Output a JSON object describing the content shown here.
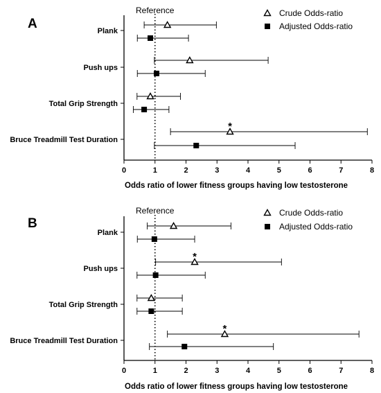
{
  "chart_data": [
    {
      "type": "forest",
      "panel_label": "A",
      "reference_label": "Reference",
      "reference_value": 1,
      "xlabel": "Odds ratio of lower fitness groups having low testosterone",
      "xlim": [
        0,
        8
      ],
      "xticks": [
        "0",
        "1",
        "2",
        "3",
        "4",
        "5",
        "6",
        "7",
        "8"
      ],
      "legend": {
        "position": "top-right",
        "entries": [
          "Crude Odds-ratio",
          "Adjusted Odds-ratio"
        ]
      },
      "categories": [
        "Plank",
        "Push ups",
        "Total Grip Strength",
        "Bruce Treadmill Test Duration"
      ],
      "series": [
        {
          "name": "Crude Odds-ratio",
          "marker": "open-triangle",
          "points": [
            {
              "or": 1.4,
              "lo": 0.65,
              "hi": 2.98,
              "sig": false
            },
            {
              "or": 2.12,
              "lo": 0.98,
              "hi": 4.65,
              "sig": false
            },
            {
              "or": 0.85,
              "lo": 0.42,
              "hi": 1.82,
              "sig": false
            },
            {
              "or": 3.42,
              "lo": 1.5,
              "hi": 7.85,
              "sig": true
            }
          ]
        },
        {
          "name": "Adjusted Odds-ratio",
          "marker": "filled-square",
          "points": [
            {
              "or": 0.85,
              "lo": 0.43,
              "hi": 2.08,
              "sig": false
            },
            {
              "or": 1.05,
              "lo": 0.43,
              "hi": 2.62,
              "sig": false
            },
            {
              "or": 0.65,
              "lo": 0.3,
              "hi": 1.45,
              "sig": false
            },
            {
              "or": 2.33,
              "lo": 0.98,
              "hi": 5.52,
              "sig": false
            }
          ]
        }
      ],
      "significance_marker": "*"
    },
    {
      "type": "forest",
      "panel_label": "B",
      "reference_label": "Reference",
      "reference_value": 1,
      "xlabel": "Odds ratio of lower fitness groups having low testosterone",
      "xlim": [
        0,
        8
      ],
      "xticks": [
        "0",
        "1",
        "2",
        "3",
        "4",
        "5",
        "6",
        "7",
        "8"
      ],
      "legend": {
        "position": "top-right",
        "entries": [
          "Crude Odds-ratio",
          "Adjusted Odds-ratio"
        ]
      },
      "categories": [
        "Plank",
        "Push ups",
        "Total Grip Strength",
        "Bruce Treadmill Test Duration"
      ],
      "series": [
        {
          "name": "Crude Odds-ratio",
          "marker": "open-triangle",
          "points": [
            {
              "or": 1.6,
              "lo": 0.75,
              "hi": 3.45,
              "sig": false
            },
            {
              "or": 2.28,
              "lo": 1.02,
              "hi": 5.08,
              "sig": true
            },
            {
              "or": 0.88,
              "lo": 0.42,
              "hi": 1.88,
              "sig": false
            },
            {
              "or": 3.25,
              "lo": 1.4,
              "hi": 7.58,
              "sig": true
            }
          ]
        },
        {
          "name": "Adjusted Odds-ratio",
          "marker": "filled-square",
          "points": [
            {
              "or": 0.98,
              "lo": 0.43,
              "hi": 2.28,
              "sig": false
            },
            {
              "or": 1.02,
              "lo": 0.42,
              "hi": 2.62,
              "sig": false
            },
            {
              "or": 0.88,
              "lo": 0.42,
              "hi": 1.88,
              "sig": false
            },
            {
              "or": 1.95,
              "lo": 0.82,
              "hi": 4.82,
              "sig": false
            }
          ]
        }
      ],
      "significance_marker": "*"
    }
  ]
}
